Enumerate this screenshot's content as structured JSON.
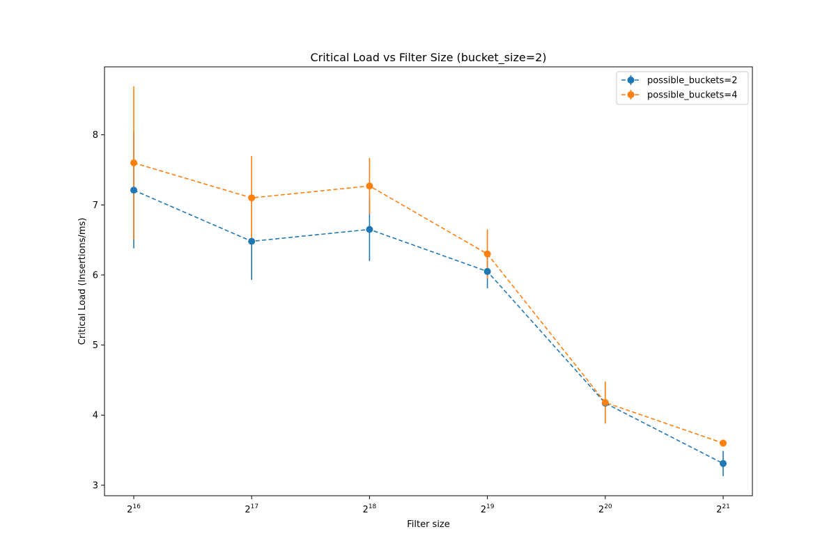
{
  "chart_data": {
    "type": "line",
    "title": "Critical Load vs Filter Size (bucket_size=2)",
    "xlabel": "Filter size",
    "ylabel": "Critical Load (Insertions/ms)",
    "x_scale": "log2",
    "x_ticks": [
      {
        "base": "2",
        "exp": "16"
      },
      {
        "base": "2",
        "exp": "17"
      },
      {
        "base": "2",
        "exp": "18"
      },
      {
        "base": "2",
        "exp": "19"
      },
      {
        "base": "2",
        "exp": "20"
      },
      {
        "base": "2",
        "exp": "21"
      }
    ],
    "x": [
      65536,
      131072,
      262144,
      524288,
      1048576,
      2097152
    ],
    "y_ticks": [
      "3",
      "4",
      "5",
      "6",
      "7",
      "8"
    ],
    "ylim": [
      2.85,
      8.97
    ],
    "grid": false,
    "legend_position": "top-right",
    "series": [
      {
        "name": "possible_buckets=2",
        "color": "#1f77b4",
        "values": [
          7.21,
          6.48,
          6.65,
          6.05,
          4.17,
          3.31
        ],
        "err_low": [
          6.38,
          5.93,
          6.2,
          5.81,
          4.17,
          3.13
        ],
        "err_high": [
          8.04,
          7.03,
          7.1,
          6.29,
          4.17,
          3.49
        ]
      },
      {
        "name": "possible_buckets=4",
        "color": "#ff7f0e",
        "values": [
          7.6,
          7.1,
          7.27,
          6.3,
          4.18,
          3.6
        ],
        "err_low": [
          6.51,
          6.5,
          6.87,
          5.95,
          3.88,
          3.55
        ],
        "err_high": [
          8.69,
          7.7,
          7.67,
          6.65,
          4.48,
          3.65
        ]
      }
    ]
  }
}
